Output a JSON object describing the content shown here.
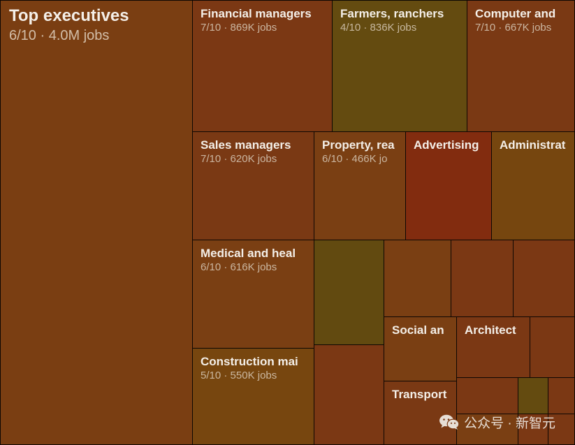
{
  "chart_data": {
    "type": "treemap",
    "nodes": [
      {
        "label": "Top executives",
        "score": "6/10",
        "jobs": "4.0M jobs",
        "color": "#7a3e12"
      },
      {
        "label": "Financial managers",
        "score": "7/10",
        "jobs": "869K jobs",
        "color": "#7b3814"
      },
      {
        "label": "Farmers, ranchers",
        "score": "4/10",
        "jobs": "836K jobs",
        "color": "#644b10"
      },
      {
        "label": "Computer and",
        "score": "7/10",
        "jobs": "667K jobs",
        "color": "#7a3914"
      },
      {
        "label": "Sales managers",
        "score": "7/10",
        "jobs": "620K jobs",
        "color": "#7a3914"
      },
      {
        "label": "Property, rea",
        "score": "6/10",
        "jobs": "466K jo",
        "color": "#7a3f13"
      },
      {
        "label": "Advertising",
        "score": "",
        "jobs": "",
        "color": "#822c0f"
      },
      {
        "label": "Administrat",
        "score": "",
        "jobs": "",
        "color": "#76460f"
      },
      {
        "label": "Medical and heal",
        "score": "6/10",
        "jobs": "616K jobs",
        "color": "#7a3f13"
      },
      {
        "label": "",
        "score": "",
        "jobs": "",
        "color": "#624a10"
      },
      {
        "label": "",
        "score": "",
        "jobs": "",
        "color": "#7a3f13"
      },
      {
        "label": "",
        "score": "",
        "jobs": "",
        "color": "#7b3814"
      },
      {
        "label": "",
        "score": "",
        "jobs": "",
        "color": "#7b3814"
      },
      {
        "label": "Construction mai",
        "score": "5/10",
        "jobs": "550K jobs",
        "color": "#77460f"
      },
      {
        "label": "",
        "score": "",
        "jobs": "",
        "color": "#7b3814"
      },
      {
        "label": "Social an",
        "score": "",
        "jobs": "",
        "color": "#7a3f13"
      },
      {
        "label": "Architect",
        "score": "",
        "jobs": "",
        "color": "#7b3814"
      },
      {
        "label": "",
        "score": "",
        "jobs": "",
        "color": "#7b3814"
      },
      {
        "label": "Transport",
        "score": "",
        "jobs": "",
        "color": "#7a3914"
      },
      {
        "label": "",
        "score": "",
        "jobs": "",
        "color": "#7b3814"
      },
      {
        "label": "",
        "score": "",
        "jobs": "",
        "color": "#7a3f13"
      },
      {
        "label": "",
        "score": "",
        "jobs": "",
        "color": "#644b10"
      },
      {
        "label": "",
        "score": "",
        "jobs": "",
        "color": "#7b3814"
      },
      {
        "label": "",
        "score": "",
        "jobs": "",
        "color": "#7b3814"
      },
      {
        "label": "",
        "score": "",
        "jobs": "",
        "color": "#7b3814"
      }
    ]
  },
  "watermark": {
    "text": "公众号 · 新智元"
  }
}
